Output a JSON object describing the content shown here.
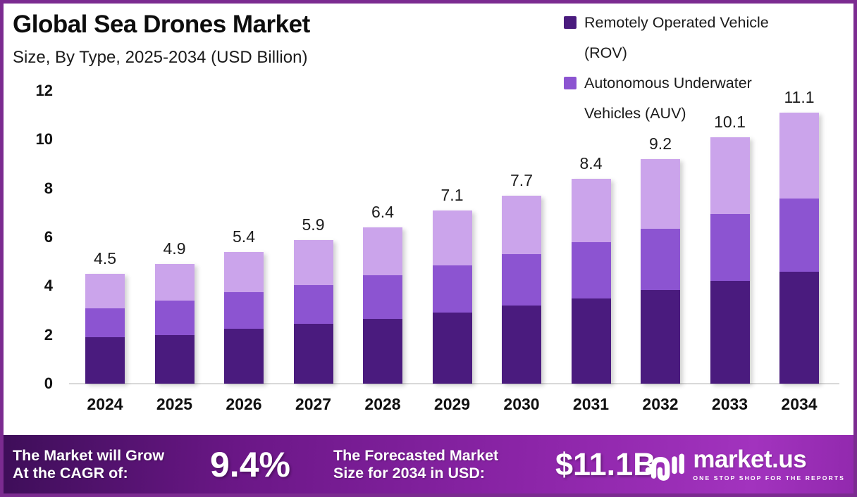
{
  "header": {
    "title": "Global Sea Drones Market",
    "subtitle": "Size, By Type, 2025-2034 (USD Billion)"
  },
  "legend": {
    "position": "top-right",
    "items": [
      {
        "label": "Remotely Operated Vehicle (ROV)",
        "lines": [
          "Remotely Operated Vehicle",
          "(ROV)"
        ],
        "color": "#4a1b7e"
      },
      {
        "label": "Autonomous Underwater Vehicles (AUV)",
        "lines": [
          "Autonomous Underwater",
          "Vehicles (AUV)"
        ],
        "color": "#8c54d1"
      }
    ]
  },
  "chart_data": {
    "type": "bar",
    "stacked": true,
    "title": "Global Sea Drones Market",
    "subtitle": "Size, By Type, 2025-2034 (USD Billion)",
    "xlabel": "",
    "ylabel": "USD Billion",
    "categories": [
      "2024",
      "2025",
      "2026",
      "2027",
      "2028",
      "2029",
      "2030",
      "2031",
      "2032",
      "2033",
      "2034"
    ],
    "totals": [
      4.5,
      4.9,
      5.4,
      5.9,
      6.4,
      7.1,
      7.7,
      8.4,
      9.2,
      10.1,
      11.1
    ],
    "value_labels": [
      "4.5",
      "4.9",
      "5.4",
      "5.9",
      "6.4",
      "7.1",
      "7.7",
      "8.4",
      "9.2",
      "10.1",
      "11.1"
    ],
    "series": [
      {
        "name": "Remotely Operated Vehicle (ROV)",
        "in_legend": true,
        "color": "#4a1b7e",
        "values": [
          1.9,
          2.0,
          2.25,
          2.45,
          2.65,
          2.9,
          3.2,
          3.5,
          3.85,
          4.2,
          4.6
        ]
      },
      {
        "name": "Autonomous Underwater Vehicles (AUV)",
        "in_legend": true,
        "color": "#8c54d1",
        "values": [
          1.2,
          1.4,
          1.5,
          1.6,
          1.8,
          1.95,
          2.1,
          2.3,
          2.5,
          2.75,
          3.0
        ]
      },
      {
        "name": "Unlabeled top segment",
        "in_legend": false,
        "color": "#cba4eb",
        "values": [
          1.4,
          1.5,
          1.65,
          1.85,
          1.95,
          2.25,
          2.4,
          2.6,
          2.85,
          3.15,
          3.5
        ]
      }
    ],
    "ylim": [
      0,
      12
    ],
    "y_ticks": [
      0,
      2,
      4,
      6,
      8,
      10,
      12
    ],
    "grid": false,
    "legend_position": "top-right"
  },
  "footer": {
    "cagr_label_lines": [
      "The Market will Grow",
      "At the CAGR of:"
    ],
    "cagr_value": "9.4%",
    "forecast_label_lines": [
      "The Forecasted Market",
      "Size for 2034 in USD:"
    ],
    "forecast_value": "$11.1B",
    "brand": {
      "name": "market.us",
      "tagline": "ONE STOP SHOP FOR THE REPORTS"
    }
  },
  "colors": {
    "frame_border": "#7b2b90",
    "baseline": "#d9d9d9",
    "footer_gradient_start": "#3e0e59",
    "footer_gradient_mid": "#8c25a8",
    "footer_gradient_end": "#9229ae",
    "text_dark": "#111111",
    "text_white": "#ffffff"
  }
}
